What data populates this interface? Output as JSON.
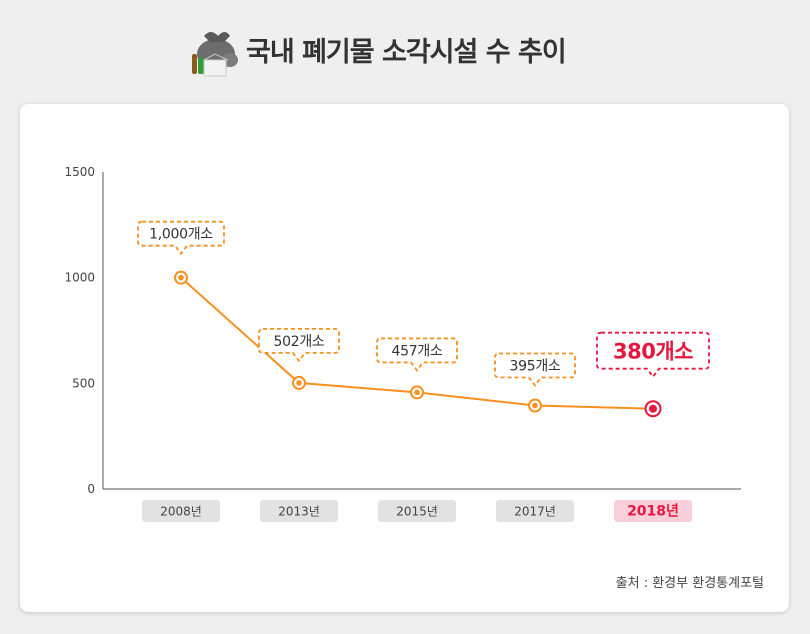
{
  "header": {
    "title": "국내 폐기물 소각시설 수 추이"
  },
  "icons": {
    "title_icon": "trash-bag-icon"
  },
  "colors": {
    "line": "#f7901e",
    "highlight": "#e5173f",
    "axis": "#555555",
    "pill": "#e2e2e2",
    "pill_highlight": "#fbcfd9"
  },
  "chart_data": {
    "type": "line",
    "categories": [
      "2008년",
      "2013년",
      "2015년",
      "2017년",
      "2018년"
    ],
    "values": [
      1000,
      502,
      457,
      395,
      380
    ],
    "labels": [
      "1,000개소",
      "502개소",
      "457개소",
      "395개소",
      "380개소"
    ],
    "highlight_index": 4,
    "title": "국내 폐기물 소각시설 수 추이",
    "xlabel": "",
    "ylabel": "",
    "ylim": [
      0,
      1500
    ],
    "yticks": [
      "0",
      "500",
      "1000",
      "1500"
    ],
    "grid": false,
    "legend": "none"
  },
  "footer": {
    "source": "출처 : 환경부 환경통계포털"
  }
}
